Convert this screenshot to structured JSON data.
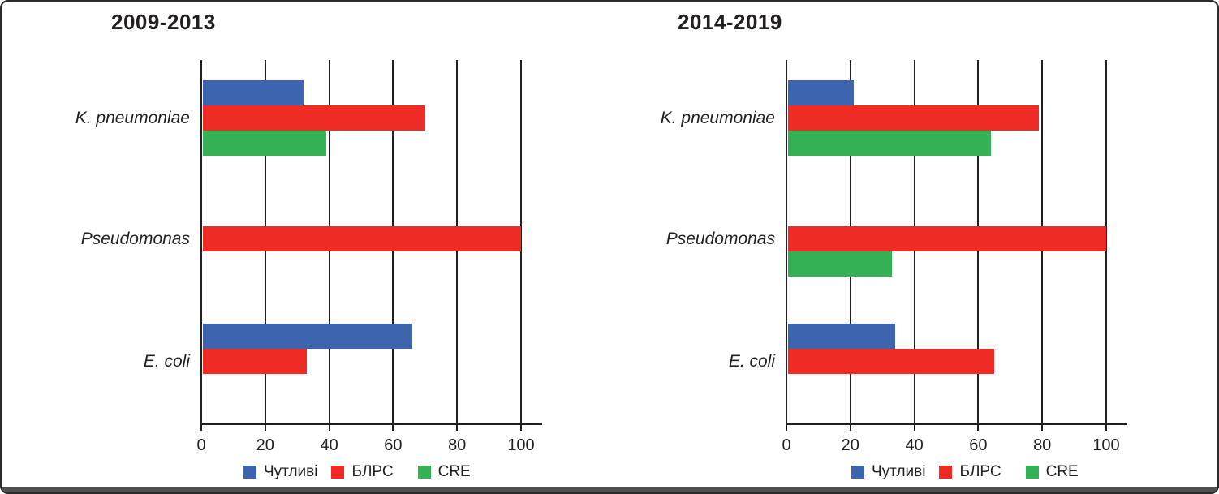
{
  "colors": {
    "sensitive_blue": "#3D64AE",
    "blrs_red": "#EE2B24",
    "cre_green": "#35B155",
    "ink": "#231f20",
    "bottom_edge": "#4f5153"
  },
  "chart_data": [
    {
      "type": "bar",
      "orientation": "horizontal",
      "title": "2009-2013",
      "categories": [
        "K. pneumoniae",
        "Pseudomonas",
        "E. coli"
      ],
      "series": [
        {
          "name": "Чутливі",
          "color": "#3D64AE",
          "values": [
            32,
            null,
            66
          ]
        },
        {
          "name": "БЛРС",
          "color": "#EE2B24",
          "values": [
            70,
            100,
            33
          ]
        },
        {
          "name": "CRE",
          "color": "#35B155",
          "values": [
            39,
            null,
            null
          ]
        }
      ],
      "xlabel": "",
      "ylabel": "",
      "xlim": [
        0,
        100
      ],
      "xticks": [
        0,
        20,
        40,
        60,
        80,
        100
      ],
      "grid": true,
      "legend_position": "bottom"
    },
    {
      "type": "bar",
      "orientation": "horizontal",
      "title": "2014-2019",
      "categories": [
        "K. pneumoniae",
        "Pseudomonas",
        "E. coli"
      ],
      "series": [
        {
          "name": "Чутливі",
          "color": "#3D64AE",
          "values": [
            21,
            null,
            34
          ]
        },
        {
          "name": "БЛРС",
          "color": "#EE2B24",
          "values": [
            79,
            100,
            65
          ]
        },
        {
          "name": "CRE",
          "color": "#35B155",
          "values": [
            64,
            33,
            null
          ]
        }
      ],
      "xlabel": "",
      "ylabel": "",
      "xlim": [
        0,
        100
      ],
      "xticks": [
        0,
        20,
        40,
        60,
        80,
        100
      ],
      "grid": true,
      "legend_position": "bottom"
    }
  ]
}
